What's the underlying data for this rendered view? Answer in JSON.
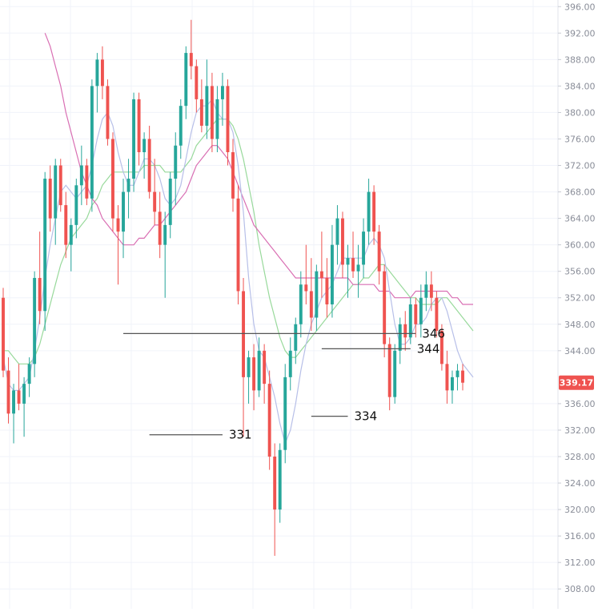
{
  "chart_data": {
    "type": "candlestick",
    "title": "",
    "xlabel": "",
    "ylabel": "",
    "ylim": [
      305,
      397
    ],
    "grid": true,
    "y_ticks": [
      396,
      392,
      388,
      384,
      380,
      376,
      372,
      368,
      364,
      360,
      356,
      352,
      348,
      344,
      336,
      332,
      328,
      324,
      320,
      316,
      312,
      308
    ],
    "y_tick_labels": [
      "396.00",
      "392.00",
      "388.00",
      "384.00",
      "380.00",
      "376.00",
      "372.00",
      "368.00",
      "364.00",
      "360.00",
      "356.00",
      "352.00",
      "348.00",
      "344.00",
      "336.00",
      "332.00",
      "328.00",
      "324.00",
      "320.00",
      "316.00",
      "312.00",
      "308.00"
    ],
    "current_price": 339.17,
    "current_price_label": "339.17",
    "colors": {
      "up": "#26a69a",
      "down": "#ef5350",
      "price_tag": "#ef5350",
      "level_line": "#555555",
      "ma_fast": "#b7bfe8",
      "ma_mid": "#98d99b",
      "ma_slow": "#d96fb3",
      "grid": "#f0f3fa",
      "axis_text": "#8a8e99"
    },
    "levels": [
      {
        "price": 346.6,
        "label": "346",
        "x_start": 23,
        "x_end": 79
      },
      {
        "price": 344.3,
        "label": "344",
        "x_start": 61,
        "x_end": 78
      },
      {
        "price": 331.3,
        "label": "331",
        "x_start": 28,
        "x_end": 42
      },
      {
        "price": 334.1,
        "label": "334",
        "x_start": 59,
        "x_end": 66
      }
    ],
    "candles": [
      [
        352,
        353.5,
        340,
        341
      ],
      [
        341,
        343,
        333,
        334.5
      ],
      [
        334.5,
        339,
        330,
        338
      ],
      [
        338,
        342,
        335,
        336
      ],
      [
        336,
        340,
        331,
        339
      ],
      [
        339,
        343,
        337,
        342
      ],
      [
        342,
        356,
        340,
        355
      ],
      [
        355,
        362,
        348,
        350
      ],
      [
        350,
        371,
        347,
        370
      ],
      [
        370,
        372,
        362,
        364
      ],
      [
        364,
        373,
        360,
        372
      ],
      [
        372,
        373,
        365,
        366
      ],
      [
        366,
        368,
        358,
        360
      ],
      [
        360,
        364,
        356,
        363
      ],
      [
        363,
        370,
        361,
        369
      ],
      [
        369,
        375,
        366,
        372
      ],
      [
        372,
        373,
        366,
        367
      ],
      [
        367,
        385,
        365,
        384
      ],
      [
        384,
        389,
        380,
        388
      ],
      [
        388,
        390,
        382,
        384
      ],
      [
        384,
        385,
        375,
        376
      ],
      [
        376,
        377,
        362,
        364
      ],
      [
        364,
        366,
        354,
        362
      ],
      [
        362,
        370,
        358,
        368
      ],
      [
        368,
        373,
        364,
        370
      ],
      [
        370,
        383,
        368,
        382
      ],
      [
        382,
        383,
        372,
        374
      ],
      [
        374,
        377,
        370,
        376
      ],
      [
        376,
        378,
        367,
        368
      ],
      [
        368,
        373,
        363,
        365
      ],
      [
        365,
        368,
        358,
        360
      ],
      [
        360,
        365,
        352,
        363
      ],
      [
        363,
        371,
        361,
        370
      ],
      [
        370,
        377,
        366,
        375
      ],
      [
        375,
        382,
        373,
        381
      ],
      [
        381,
        390,
        379,
        389
      ],
      [
        389,
        394,
        385,
        387
      ],
      [
        387,
        388,
        380,
        382
      ],
      [
        382,
        385,
        377,
        378
      ],
      [
        378,
        388,
        376,
        384
      ],
      [
        384,
        386,
        374,
        376
      ],
      [
        376,
        384,
        374,
        382
      ],
      [
        382,
        386,
        378,
        384
      ],
      [
        384,
        385,
        372,
        374
      ],
      [
        374,
        376,
        365,
        367
      ],
      [
        367,
        369,
        351,
        353
      ],
      [
        353,
        355,
        331,
        340
      ],
      [
        340,
        344,
        336,
        343
      ],
      [
        343,
        345,
        335,
        338
      ],
      [
        338,
        346,
        337,
        344
      ],
      [
        344,
        345,
        336,
        339
      ],
      [
        339,
        341,
        326,
        328
      ],
      [
        328,
        330,
        313,
        320
      ],
      [
        320,
        330,
        318,
        329
      ],
      [
        329,
        342,
        327,
        340
      ],
      [
        340,
        346,
        338,
        344
      ],
      [
        344,
        349,
        342,
        348
      ],
      [
        348,
        356,
        346,
        354
      ],
      [
        354,
        360,
        351,
        353
      ],
      [
        353,
        358,
        347,
        349
      ],
      [
        349,
        357,
        347,
        356
      ],
      [
        356,
        362,
        352,
        355
      ],
      [
        355,
        358,
        349,
        351
      ],
      [
        351,
        363,
        349,
        360
      ],
      [
        360,
        366,
        357,
        364
      ],
      [
        364,
        365,
        355,
        357
      ],
      [
        357,
        360,
        352,
        358
      ],
      [
        358,
        362,
        355,
        356
      ],
      [
        356,
        360,
        352,
        357
      ],
      [
        357,
        364,
        355,
        362
      ],
      [
        362,
        370,
        360,
        368
      ],
      [
        368,
        369,
        360,
        362
      ],
      [
        362,
        363,
        354,
        356
      ],
      [
        356,
        357,
        343,
        345
      ],
      [
        345,
        346,
        335,
        337
      ],
      [
        337,
        345,
        336,
        344
      ],
      [
        344,
        349,
        342,
        348
      ],
      [
        348,
        350,
        344,
        346
      ],
      [
        346,
        352,
        345,
        351
      ],
      [
        351,
        352,
        346,
        348
      ],
      [
        348,
        354,
        346,
        352
      ],
      [
        352,
        356,
        350,
        354
      ],
      [
        354,
        356,
        350,
        352
      ],
      [
        352,
        353,
        346,
        347
      ],
      [
        347,
        348,
        341,
        342
      ],
      [
        342,
        344,
        336,
        338
      ],
      [
        338,
        341,
        336,
        340
      ],
      [
        340,
        342,
        338,
        341
      ],
      [
        341,
        342,
        338,
        339.17
      ]
    ],
    "ma_fast": [
      343,
      339,
      338,
      338,
      339,
      340,
      344,
      349,
      355,
      360,
      364,
      368,
      369,
      368,
      367,
      368,
      369,
      372,
      376,
      379,
      380,
      378,
      374,
      371,
      369,
      369,
      371,
      373,
      373,
      372,
      370,
      367,
      366,
      367,
      369,
      373,
      377,
      380,
      381,
      381,
      382,
      380,
      379,
      379,
      377,
      372,
      365,
      355,
      348,
      344,
      343,
      340,
      337,
      333,
      330,
      332,
      336,
      341,
      345,
      348,
      350,
      352,
      353,
      354,
      356,
      358,
      358,
      358,
      358,
      358,
      360,
      361,
      360,
      358,
      353,
      348,
      345,
      345,
      346,
      348,
      348,
      349,
      351,
      352,
      352,
      350,
      347,
      344,
      342,
      341,
      340
    ],
    "ma_mid": [
      344,
      344,
      343,
      342,
      342,
      342,
      343,
      345,
      348,
      351,
      354,
      357,
      359,
      361,
      362,
      363,
      364,
      366,
      367,
      369,
      370,
      371,
      371,
      371,
      371,
      371,
      371,
      372,
      372,
      372,
      372,
      371,
      371,
      371,
      371,
      372,
      373,
      375,
      376,
      377,
      378,
      379,
      379,
      379,
      378,
      376,
      373,
      369,
      365,
      360,
      356,
      352,
      349,
      346,
      344,
      343,
      343,
      344,
      345,
      346,
      347,
      348,
      349,
      350,
      351,
      352,
      353,
      354,
      354,
      355,
      355,
      356,
      357,
      357,
      356,
      355,
      354,
      353,
      352,
      352,
      351,
      351,
      351,
      351,
      352,
      352,
      351,
      350,
      349,
      348,
      347
    ],
    "ma_slow": [
      null,
      null,
      null,
      null,
      null,
      null,
      null,
      null,
      392,
      390,
      387,
      384,
      380,
      377,
      374,
      371,
      369,
      367,
      366,
      364,
      363,
      362,
      361,
      360,
      360,
      360,
      361,
      361,
      362,
      363,
      363,
      364,
      365,
      366,
      367,
      368,
      370,
      372,
      373,
      374,
      375,
      375,
      374,
      373,
      371,
      369,
      367,
      365,
      363,
      362,
      361,
      360,
      359,
      358,
      357,
      356,
      355,
      355,
      355,
      355,
      355,
      355,
      355,
      355,
      355,
      355,
      355,
      354,
      354,
      354,
      354,
      354,
      353,
      353,
      353,
      352,
      352,
      352,
      352,
      353,
      353,
      353,
      353,
      353,
      353,
      353,
      352,
      352,
      351,
      351,
      351
    ]
  }
}
